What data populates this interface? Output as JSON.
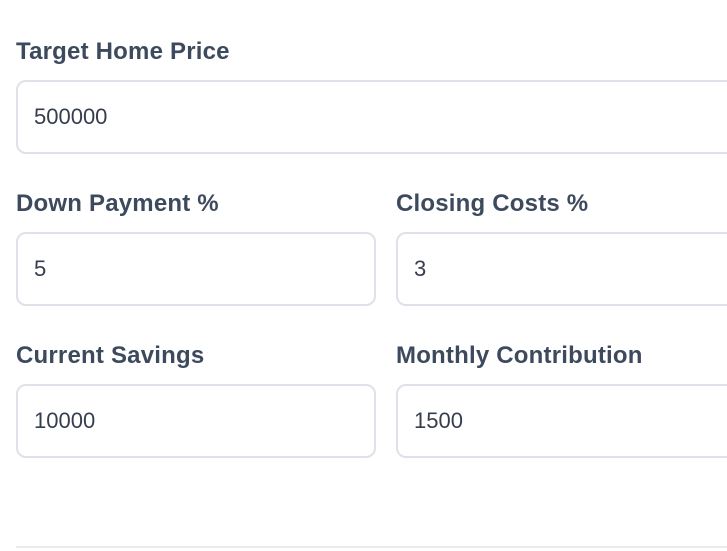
{
  "colors": {
    "label_text": "#3d4a5e",
    "input_text": "#363e4e",
    "input_border": "#dee1e8",
    "divider": "#e9ebf0",
    "background": "#ffffff"
  },
  "form": {
    "fields": [
      {
        "label": "Target Home Price",
        "value": "500000"
      },
      {
        "label": "Down Payment %",
        "value": "5"
      },
      {
        "label": "Closing Costs %",
        "value": "3"
      },
      {
        "label": "Current Savings",
        "value": "10000"
      },
      {
        "label": "Monthly Contribution",
        "value": "1500"
      }
    ]
  }
}
